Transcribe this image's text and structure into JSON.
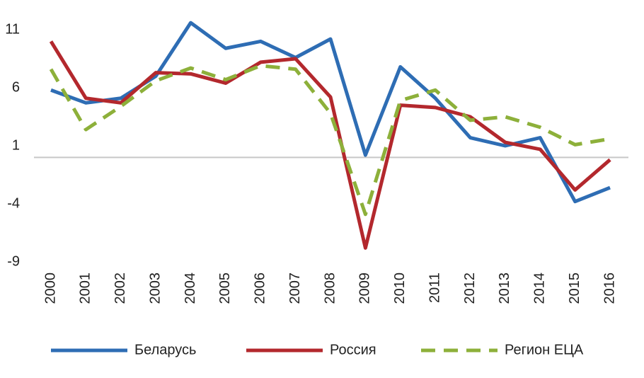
{
  "chart_data": {
    "type": "line",
    "categories": [
      "2000",
      "2001",
      "2002",
      "2003",
      "2004",
      "2005",
      "2006",
      "2007",
      "2008",
      "2009",
      "2010",
      "2011",
      "2012",
      "2013",
      "2014",
      "2015",
      "2016"
    ],
    "series": [
      {
        "name": "Беларусь",
        "color": "#2e6db4",
        "dash": "solid",
        "values": [
          5.8,
          4.7,
          5.1,
          7.0,
          11.6,
          9.4,
          10.0,
          8.6,
          10.2,
          0.2,
          7.8,
          5.1,
          1.7,
          1.0,
          1.7,
          -3.8,
          -2.6
        ]
      },
      {
        "name": "Россия",
        "color": "#b3282d",
        "dash": "solid",
        "values": [
          10.0,
          5.1,
          4.7,
          7.3,
          7.2,
          6.4,
          8.2,
          8.5,
          5.2,
          -7.8,
          4.5,
          4.3,
          3.5,
          1.3,
          0.7,
          -2.8,
          -0.2
        ]
      },
      {
        "name": "Регион ЕЦА",
        "color": "#8db03a",
        "dash": "dashed",
        "values": [
          7.6,
          2.4,
          4.4,
          6.6,
          7.7,
          6.7,
          7.9,
          7.6,
          3.8,
          -4.9,
          4.9,
          5.8,
          3.2,
          3.5,
          2.6,
          1.1,
          1.6
        ]
      }
    ],
    "ylim": [
      -9,
      11
    ],
    "yticks": [
      -9,
      -4,
      1,
      6,
      11
    ],
    "legend": "bottom"
  }
}
